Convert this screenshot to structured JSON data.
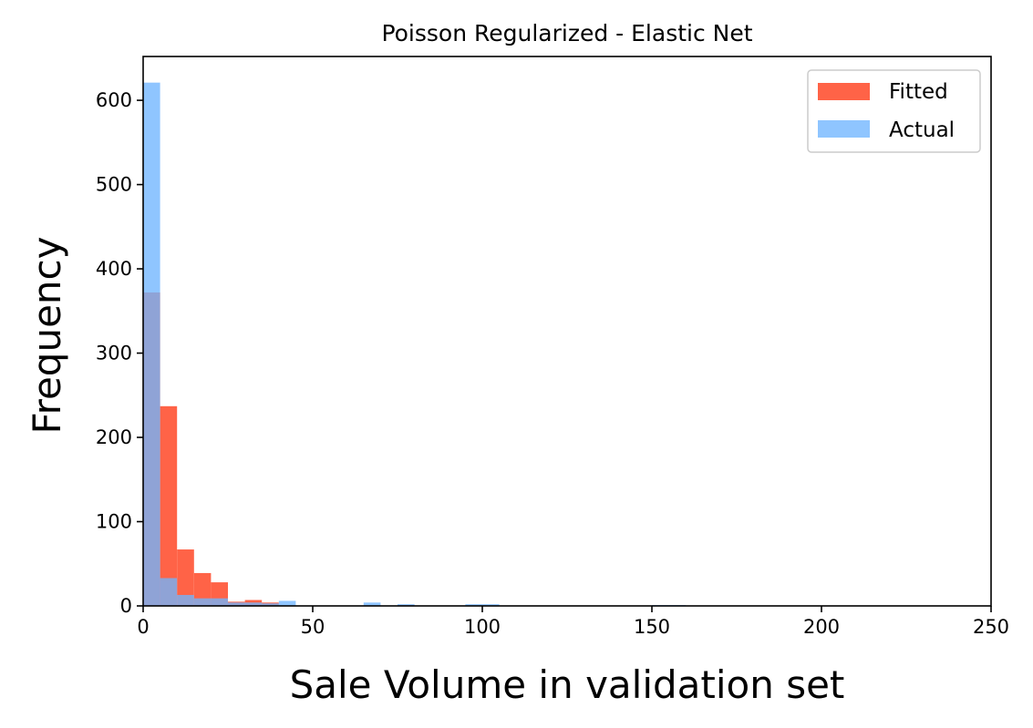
{
  "chart_data": {
    "type": "bar",
    "title": "Poisson Regularized - Elastic Net",
    "xlabel": "Sale Volume in validation set",
    "ylabel": "Frequency",
    "xlim": [
      0,
      250
    ],
    "ylim": [
      0,
      652
    ],
    "xticks": [
      0,
      50,
      100,
      150,
      200,
      250
    ],
    "yticks": [
      0,
      100,
      200,
      300,
      400,
      500,
      600
    ],
    "legend_position": "top-right",
    "series": [
      {
        "name": "Fitted",
        "color": "#ff6347",
        "bin_width": 5,
        "bins": [
          {
            "x0": 0,
            "value": 372
          },
          {
            "x0": 5,
            "value": 237
          },
          {
            "x0": 10,
            "value": 67
          },
          {
            "x0": 15,
            "value": 39
          },
          {
            "x0": 20,
            "value": 28
          },
          {
            "x0": 25,
            "value": 5
          },
          {
            "x0": 30,
            "value": 7
          },
          {
            "x0": 35,
            "value": 4
          },
          {
            "x0": 75,
            "value": 1
          }
        ]
      },
      {
        "name": "Actual",
        "color": "#6fb5ff",
        "bin_width": 5,
        "bins": [
          {
            "x0": 0,
            "value": 621
          },
          {
            "x0": 5,
            "value": 33
          },
          {
            "x0": 10,
            "value": 13
          },
          {
            "x0": 15,
            "value": 9
          },
          {
            "x0": 20,
            "value": 9
          },
          {
            "x0": 25,
            "value": 4
          },
          {
            "x0": 30,
            "value": 4
          },
          {
            "x0": 35,
            "value": 3
          },
          {
            "x0": 40,
            "value": 6
          },
          {
            "x0": 65,
            "value": 4
          },
          {
            "x0": 75,
            "value": 2
          },
          {
            "x0": 95,
            "value": 2
          },
          {
            "x0": 100,
            "value": 2
          },
          {
            "x0": 150,
            "value": 1
          },
          {
            "x0": 155,
            "value": 1
          }
        ]
      }
    ]
  }
}
